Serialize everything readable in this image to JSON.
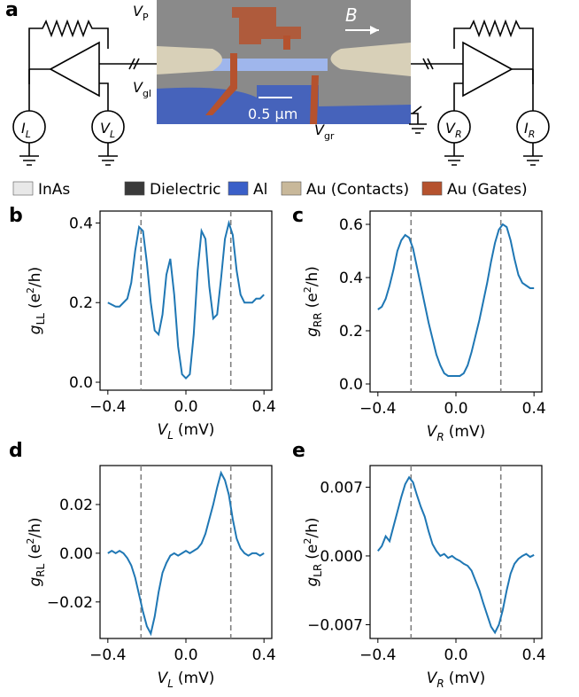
{
  "figure_label": "a",
  "schematic": {
    "labels": [
      {
        "main": "V",
        "sub": "P"
      },
      {
        "main": "B"
      },
      {
        "main": "V",
        "sub": "gl"
      },
      {
        "main": "0.5 μm"
      },
      {
        "main": "V",
        "sub": "gr"
      },
      {
        "main": "I",
        "sub": "L"
      },
      {
        "main": "V",
        "sub": "L"
      },
      {
        "main": "V",
        "sub": "R"
      },
      {
        "main": "I",
        "sub": "R"
      }
    ]
  },
  "legend": [
    {
      "name": "InAs",
      "color": "#e8e8e8"
    },
    {
      "name": "Dielectric",
      "color": "#3a3a3a"
    },
    {
      "name": "Al",
      "color": "#3a5fc8"
    },
    {
      "name": "Au (Contacts)",
      "color": "#c8b89a"
    },
    {
      "name": "Au (Gates)",
      "color": "#b5522e"
    }
  ],
  "chart_data": [
    {
      "type": "line",
      "panel": "b",
      "color": "#1f77b4",
      "vline_color": "#808080",
      "xlabel": [
        "V",
        "L",
        "(mV)"
      ],
      "ylabel": [
        "g",
        "LL",
        "(e",
        "2",
        "/h)"
      ],
      "xlim": [
        -0.44,
        0.44
      ],
      "ylim": [
        -0.02,
        0.43
      ],
      "xticks": [
        {
          "value": -0.4,
          "label": "−0.4"
        },
        {
          "value": 0,
          "label": "0.0"
        },
        0.4
      ],
      "yticks": [
        {
          "value": 0,
          "label": "0.0"
        },
        0.2,
        0.4
      ],
      "vlines": [
        -0.23,
        0.23
      ],
      "x": [
        -0.4,
        -0.38,
        -0.36,
        -0.34,
        -0.32,
        -0.3,
        -0.28,
        -0.26,
        -0.24,
        -0.22,
        -0.2,
        -0.18,
        -0.16,
        -0.14,
        -0.12,
        -0.1,
        -0.08,
        -0.06,
        -0.04,
        -0.02,
        0,
        0.02,
        0.04,
        0.06,
        0.08,
        0.1,
        0.12,
        0.14,
        0.16,
        0.18,
        0.2,
        0.22,
        0.24,
        0.26,
        0.28,
        0.3,
        0.32,
        0.34,
        0.36,
        0.38,
        0.4
      ],
      "values": [
        0.2,
        0.195,
        0.19,
        0.19,
        0.2,
        0.21,
        0.25,
        0.33,
        0.39,
        0.38,
        0.3,
        0.2,
        0.13,
        0.12,
        0.17,
        0.27,
        0.31,
        0.22,
        0.09,
        0.02,
        0.01,
        0.02,
        0.12,
        0.28,
        0.38,
        0.36,
        0.24,
        0.16,
        0.17,
        0.26,
        0.36,
        0.4,
        0.37,
        0.28,
        0.22,
        0.2,
        0.2,
        0.2,
        0.21,
        0.21,
        0.22
      ]
    },
    {
      "type": "line",
      "panel": "c",
      "color": "#1f77b4",
      "vline_color": "#808080",
      "xlabel": [
        "V",
        "R",
        "(mV)"
      ],
      "ylabel": [
        "g",
        "RR",
        "(e",
        "2",
        "/h)"
      ],
      "xlim": [
        -0.44,
        0.44
      ],
      "ylim": [
        -0.03,
        0.65
      ],
      "xticks": [
        {
          "value": -0.4,
          "label": "−0.4"
        },
        {
          "value": 0,
          "label": "0.0"
        },
        0.4
      ],
      "yticks": [
        {
          "value": 0,
          "label": "0.0"
        },
        0.2,
        0.4,
        0.6
      ],
      "vlines": [
        -0.23,
        0.23
      ],
      "x": [
        -0.4,
        -0.38,
        -0.36,
        -0.34,
        -0.32,
        -0.3,
        -0.28,
        -0.26,
        -0.24,
        -0.22,
        -0.2,
        -0.18,
        -0.16,
        -0.14,
        -0.12,
        -0.1,
        -0.08,
        -0.06,
        -0.04,
        -0.02,
        0,
        0.02,
        0.04,
        0.06,
        0.08,
        0.1,
        0.12,
        0.14,
        0.16,
        0.18,
        0.2,
        0.22,
        0.24,
        0.26,
        0.28,
        0.3,
        0.32,
        0.34,
        0.36,
        0.38,
        0.4
      ],
      "values": [
        0.28,
        0.29,
        0.32,
        0.37,
        0.43,
        0.5,
        0.54,
        0.56,
        0.55,
        0.51,
        0.44,
        0.37,
        0.3,
        0.23,
        0.17,
        0.11,
        0.07,
        0.04,
        0.03,
        0.03,
        0.03,
        0.03,
        0.04,
        0.07,
        0.12,
        0.18,
        0.24,
        0.31,
        0.38,
        0.46,
        0.53,
        0.58,
        0.6,
        0.59,
        0.54,
        0.47,
        0.41,
        0.38,
        0.37,
        0.36,
        0.36
      ]
    },
    {
      "type": "line",
      "panel": "d",
      "color": "#1f77b4",
      "vline_color": "#808080",
      "xlabel": [
        "V",
        "L",
        "(mV)"
      ],
      "ylabel": [
        "g",
        "RL",
        "(e",
        "2",
        "/h)"
      ],
      "xlim": [
        -0.44,
        0.44
      ],
      "ylim": [
        -0.035,
        0.036
      ],
      "xticks": [
        {
          "value": -0.4,
          "label": "−0.4"
        },
        {
          "value": 0,
          "label": "0.0"
        },
        0.4
      ],
      "yticks": [
        {
          "value": -0.02,
          "label": "−0.02"
        },
        {
          "value": 0,
          "label": "0.00"
        },
        0.02
      ],
      "vlines": [
        -0.23,
        0.23
      ],
      "x": [
        -0.4,
        -0.38,
        -0.36,
        -0.34,
        -0.32,
        -0.3,
        -0.28,
        -0.26,
        -0.24,
        -0.22,
        -0.2,
        -0.18,
        -0.16,
        -0.14,
        -0.12,
        -0.1,
        -0.08,
        -0.06,
        -0.04,
        -0.02,
        0,
        0.02,
        0.04,
        0.06,
        0.08,
        0.1,
        0.12,
        0.14,
        0.16,
        0.18,
        0.2,
        0.22,
        0.24,
        0.26,
        0.28,
        0.3,
        0.32,
        0.34,
        0.36,
        0.38,
        0.4
      ],
      "values": [
        0,
        0.001,
        0,
        0.001,
        0,
        -0.002,
        -0.005,
        -0.01,
        -0.017,
        -0.024,
        -0.03,
        -0.033,
        -0.026,
        -0.016,
        -0.008,
        -0.004,
        -0.001,
        0,
        -0.001,
        0,
        0.001,
        0,
        0.001,
        0.002,
        0.004,
        0.008,
        0.014,
        0.02,
        0.027,
        0.033,
        0.03,
        0.024,
        0.014,
        0.006,
        0.002,
        0,
        -0.001,
        0,
        0,
        -0.001,
        0
      ]
    },
    {
      "type": "line",
      "panel": "e",
      "color": "#1f77b4",
      "vline_color": "#808080",
      "xlabel": [
        "V",
        "R",
        "(mV)"
      ],
      "ylabel": [
        "g",
        "LR",
        "(e",
        "2",
        "/h)"
      ],
      "xlim": [
        -0.44,
        0.44
      ],
      "ylim": [
        -0.0084,
        0.0092
      ],
      "xticks": [
        {
          "value": -0.4,
          "label": "−0.4"
        },
        {
          "value": 0,
          "label": "0.0"
        },
        0.4
      ],
      "yticks": [
        {
          "value": -0.007,
          "label": "−0.007"
        },
        {
          "value": 0,
          "label": "0.000"
        },
        0.007
      ],
      "vlines": [
        -0.23,
        0.23
      ],
      "x": [
        -0.4,
        -0.38,
        -0.36,
        -0.34,
        -0.32,
        -0.3,
        -0.28,
        -0.26,
        -0.24,
        -0.22,
        -0.2,
        -0.18,
        -0.16,
        -0.14,
        -0.12,
        -0.1,
        -0.08,
        -0.06,
        -0.04,
        -0.02,
        0,
        0.02,
        0.04,
        0.06,
        0.08,
        0.1,
        0.12,
        0.14,
        0.16,
        0.18,
        0.2,
        0.22,
        0.24,
        0.26,
        0.28,
        0.3,
        0.32,
        0.34,
        0.36,
        0.38,
        0.4
      ],
      "values": [
        0.0005,
        0.001,
        0.002,
        0.0015,
        0.003,
        0.0045,
        0.006,
        0.0073,
        0.008,
        0.0075,
        0.0062,
        0.005,
        0.004,
        0.0025,
        0.0012,
        0.0005,
        0,
        0.0002,
        -0.0002,
        0,
        -0.0003,
        -0.0005,
        -0.0008,
        -0.001,
        -0.0015,
        -0.0025,
        -0.0035,
        -0.0048,
        -0.006,
        -0.0072,
        -0.0078,
        -0.007,
        -0.0055,
        -0.0035,
        -0.0018,
        -0.0008,
        -0.0003,
        0,
        0.0002,
        -0.0001,
        0.0001
      ]
    }
  ]
}
